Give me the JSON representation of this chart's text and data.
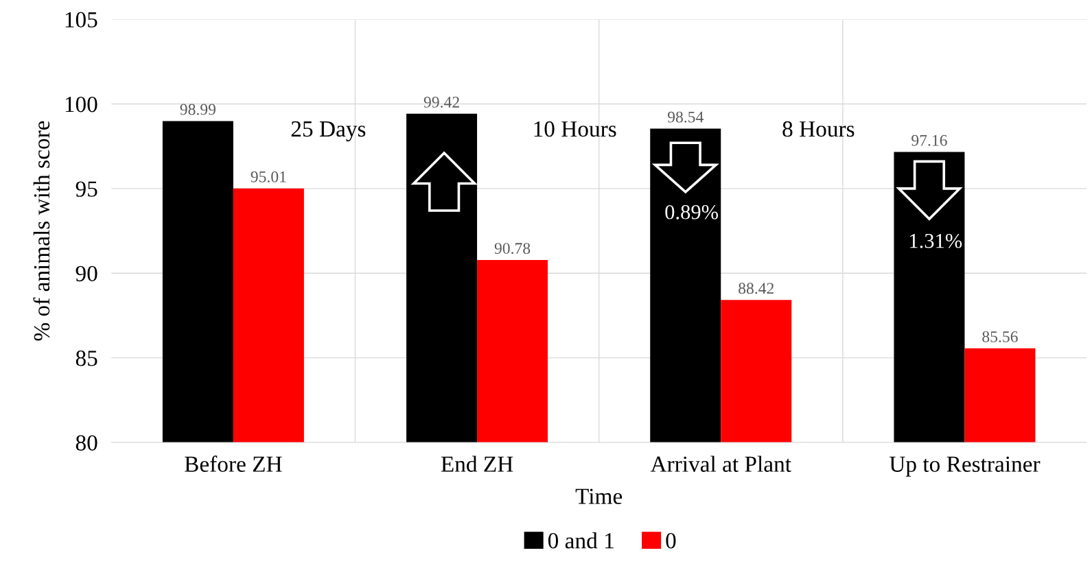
{
  "chart_data": {
    "type": "bar",
    "xlabel": "Time",
    "ylabel": "% of animals with score",
    "categories": [
      "Before ZH",
      "End ZH",
      "Arrival at Plant",
      "Up to Restrainer"
    ],
    "series": [
      {
        "name": "0 and 1",
        "color": "#000000",
        "values": [
          98.99,
          99.42,
          98.54,
          97.16
        ]
      },
      {
        "name": "0",
        "color": "#ff0000",
        "values": [
          95.01,
          90.78,
          88.42,
          85.56
        ]
      }
    ],
    "ylim": [
      80,
      105
    ],
    "yticks": [
      80,
      85,
      90,
      95,
      100,
      105
    ],
    "grid": true,
    "legend": "bottom",
    "data_labels": true,
    "annotations": [
      "25 Days",
      "10 Hours",
      "8 Hours",
      "0.89%",
      "1.31%"
    ]
  }
}
